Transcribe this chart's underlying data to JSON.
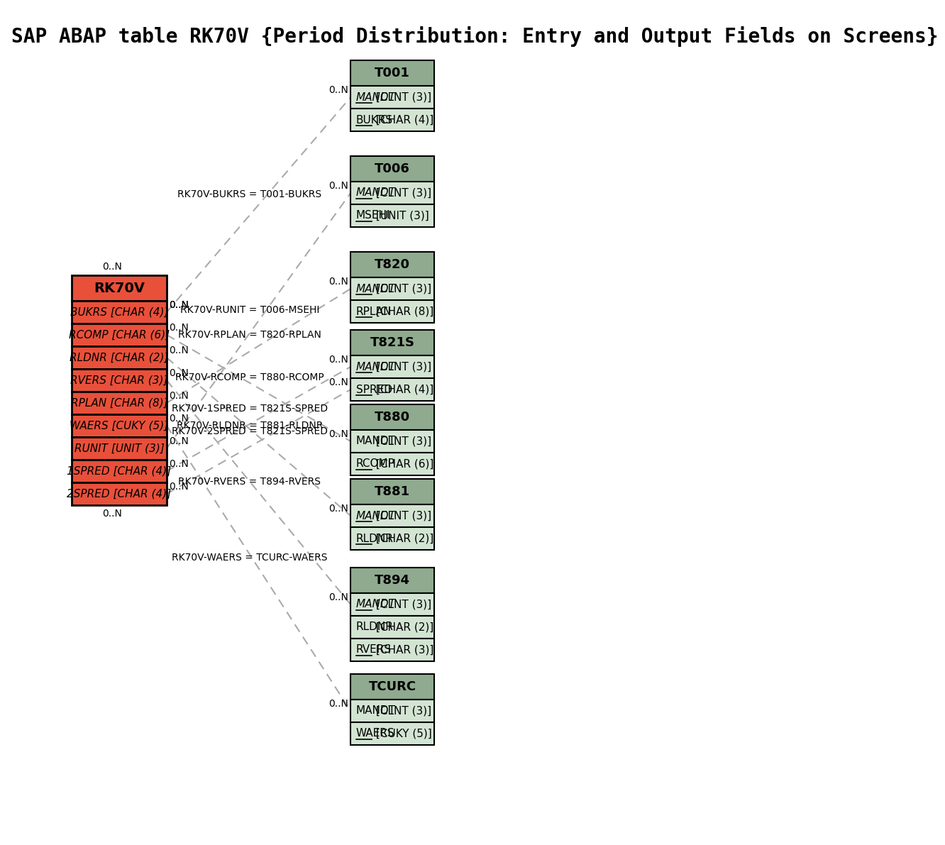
{
  "title": "SAP ABAP table RK70V {Period Distribution: Entry and Output Fields on Screens}",
  "bg_color": "#ffffff",
  "main_table": {
    "name": "RK70V",
    "header_bg": "#e8503a",
    "field_bg": "#e8503a",
    "border": "#000000",
    "fields": [
      {
        "name": "BUKRS",
        "type": " [CHAR (4)]"
      },
      {
        "name": "RCOMP",
        "type": " [CHAR (6)]"
      },
      {
        "name": "RLDNR",
        "type": " [CHAR (2)]"
      },
      {
        "name": "RVERS",
        "type": " [CHAR (3)]"
      },
      {
        "name": "RPLAN",
        "type": " [CHAR (8)]"
      },
      {
        "name": "WAERS",
        "type": " [CUKY (5)]"
      },
      {
        "name": "RUNIT",
        "type": " [UNIT (3)]"
      },
      {
        "name": "1SPRED",
        "type": " [CHAR (4)]"
      },
      {
        "name": "2SPRED",
        "type": " [CHAR (4)]"
      }
    ]
  },
  "ref_tables": [
    {
      "name": "T001",
      "header_bg": "#8faa8f",
      "field_bg": "#d3e4d3",
      "border": "#000000",
      "fields": [
        {
          "name": "MANDT",
          "type": " [CLNT (3)]",
          "italic": true,
          "underline": true
        },
        {
          "name": "BUKRS",
          "type": " [CHAR (4)]",
          "italic": false,
          "underline": true
        }
      ],
      "rel_label": "RK70V-BUKRS = T001-BUKRS",
      "src_field": 0
    },
    {
      "name": "T006",
      "header_bg": "#8faa8f",
      "field_bg": "#d3e4d3",
      "border": "#000000",
      "fields": [
        {
          "name": "MANDT",
          "type": " [CLNT (3)]",
          "italic": true,
          "underline": true
        },
        {
          "name": "MSEHI",
          "type": " [UNIT (3)]",
          "italic": false,
          "underline": true
        }
      ],
      "rel_label": "RK70V-RUNIT = T006-MSEHI",
      "src_field": 6
    },
    {
      "name": "T820",
      "header_bg": "#8faa8f",
      "field_bg": "#d3e4d3",
      "border": "#000000",
      "fields": [
        {
          "name": "MANDT",
          "type": " [CLNT (3)]",
          "italic": true,
          "underline": true
        },
        {
          "name": "RPLAN",
          "type": " [CHAR (8)]",
          "italic": false,
          "underline": true
        }
      ],
      "rel_label": "RK70V-RPLAN = T820-RPLAN",
      "src_field": 4
    },
    {
      "name": "T821S",
      "header_bg": "#8faa8f",
      "field_bg": "#d3e4d3",
      "border": "#000000",
      "fields": [
        {
          "name": "MANDT",
          "type": " [CLNT (3)]",
          "italic": true,
          "underline": true
        },
        {
          "name": "SPRED",
          "type": " [CHAR (4)]",
          "italic": false,
          "underline": true
        }
      ],
      "rel_label": "RK70V-1SPRED = T821S-SPRED",
      "rel_label2": "RK70V-2SPRED = T821S-SPRED",
      "src_field": 7,
      "src_field2": 8
    },
    {
      "name": "T880",
      "header_bg": "#8faa8f",
      "field_bg": "#d3e4d3",
      "border": "#000000",
      "fields": [
        {
          "name": "MANDT",
          "type": " [CLNT (3)]",
          "italic": false,
          "underline": false
        },
        {
          "name": "RCOMP",
          "type": " [CHAR (6)]",
          "italic": false,
          "underline": true
        }
      ],
      "rel_label": "RK70V-RCOMP = T880-RCOMP",
      "src_field": 1
    },
    {
      "name": "T881",
      "header_bg": "#8faa8f",
      "field_bg": "#d3e4d3",
      "border": "#000000",
      "fields": [
        {
          "name": "MANDT",
          "type": " [CLNT (3)]",
          "italic": true,
          "underline": true
        },
        {
          "name": "RLDNR",
          "type": " [CHAR (2)]",
          "italic": false,
          "underline": true
        }
      ],
      "rel_label": "RK70V-RLDNR = T881-RLDNR",
      "src_field": 2
    },
    {
      "name": "T894",
      "header_bg": "#8faa8f",
      "field_bg": "#d3e4d3",
      "border": "#000000",
      "fields": [
        {
          "name": "MANDT",
          "type": " [CLNT (3)]",
          "italic": true,
          "underline": true
        },
        {
          "name": "RLDNR",
          "type": " [CHAR (2)]",
          "italic": false,
          "underline": false
        },
        {
          "name": "RVERS",
          "type": " [CHAR (3)]",
          "italic": false,
          "underline": true
        }
      ],
      "rel_label": "RK70V-RVERS = T894-RVERS",
      "src_field": 3
    },
    {
      "name": "TCURC",
      "header_bg": "#8faa8f",
      "field_bg": "#d3e4d3",
      "border": "#000000",
      "fields": [
        {
          "name": "MANDT",
          "type": " [CLNT (3)]",
          "italic": false,
          "underline": false
        },
        {
          "name": "WAERS",
          "type": " [CUKY (5)]",
          "italic": false,
          "underline": true
        }
      ],
      "rel_label": "RK70V-WAERS = TCURC-WAERS",
      "src_field": 5
    }
  ]
}
